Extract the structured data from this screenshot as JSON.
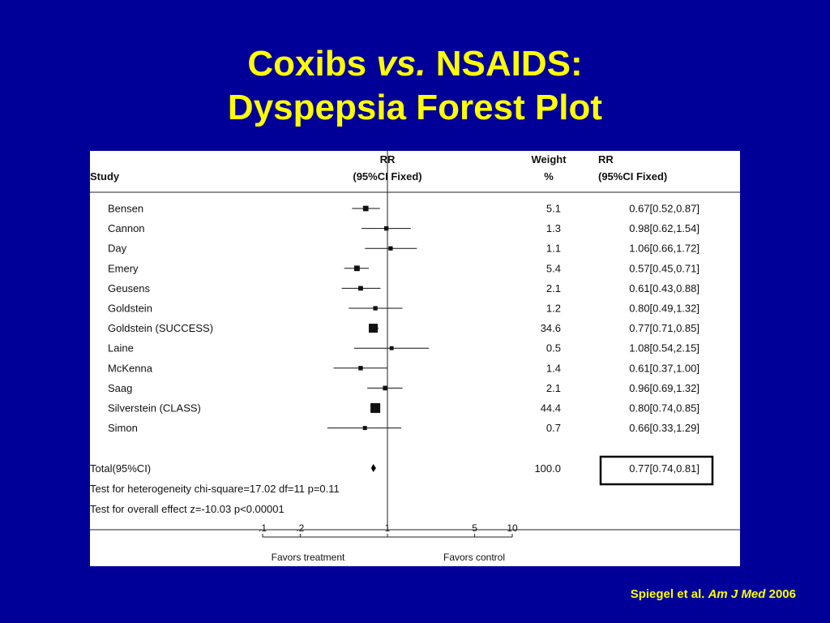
{
  "slide": {
    "title_line1_a": "Coxibs",
    "title_line1_b": "vs.",
    "title_line1_c": "NSAIDS:",
    "title_line2": "Dyspepsia Forest Plot",
    "citation_a": "Spiegel et al.",
    "citation_b": "Am J Med",
    "citation_c": "2006",
    "background_color": "#000099",
    "title_color": "#ffff00"
  },
  "chart_data": {
    "type": "forest",
    "header": {
      "study": "Study",
      "rr_line1": "RR",
      "rr_line2": "(95%CI Fixed)",
      "weight_line1": "Weight",
      "weight_line2": "%",
      "rr2_line1": "RR",
      "rr2_line2": "(95%CI Fixed)"
    },
    "scale": "log",
    "xlim": [
      0.1,
      10
    ],
    "ticks": [
      {
        "value": 0.1,
        "label": ".1"
      },
      {
        "value": 0.2,
        "label": ".2"
      },
      {
        "value": 1,
        "label": "1"
      },
      {
        "value": 5,
        "label": "5"
      },
      {
        "value": 10,
        "label": "10"
      }
    ],
    "favors_left": "Favors treatment",
    "favors_right": "Favors control",
    "studies": [
      {
        "name": "Bensen",
        "rr": 0.67,
        "lo": 0.52,
        "hi": 0.87,
        "weight": "5.1",
        "ci_text": "0.67[0.52,0.87]"
      },
      {
        "name": "Cannon",
        "rr": 0.98,
        "lo": 0.62,
        "hi": 1.54,
        "weight": "1.3",
        "ci_text": "0.98[0.62,1.54]"
      },
      {
        "name": "Day",
        "rr": 1.06,
        "lo": 0.66,
        "hi": 1.72,
        "weight": "1.1",
        "ci_text": "1.06[0.66,1.72]"
      },
      {
        "name": "Emery",
        "rr": 0.57,
        "lo": 0.45,
        "hi": 0.71,
        "weight": "5.4",
        "ci_text": "0.57[0.45,0.71]"
      },
      {
        "name": "Geusens",
        "rr": 0.61,
        "lo": 0.43,
        "hi": 0.88,
        "weight": "2.1",
        "ci_text": "0.61[0.43,0.88]"
      },
      {
        "name": "Goldstein",
        "rr": 0.8,
        "lo": 0.49,
        "hi": 1.32,
        "weight": "1.2",
        "ci_text": "0.80[0.49,1.32]"
      },
      {
        "name": "Goldstein (SUCCESS)",
        "rr": 0.77,
        "lo": 0.71,
        "hi": 0.85,
        "weight": "34.6",
        "ci_text": "0.77[0.71,0.85]"
      },
      {
        "name": "Laine",
        "rr": 1.08,
        "lo": 0.54,
        "hi": 2.15,
        "weight": "0.5",
        "ci_text": "1.08[0.54,2.15]"
      },
      {
        "name": "McKenna",
        "rr": 0.61,
        "lo": 0.37,
        "hi": 1.0,
        "weight": "1.4",
        "ci_text": "0.61[0.37,1.00]"
      },
      {
        "name": "Saag",
        "rr": 0.96,
        "lo": 0.69,
        "hi": 1.32,
        "weight": "2.1",
        "ci_text": "0.96[0.69,1.32]"
      },
      {
        "name": "Silverstein (CLASS)",
        "rr": 0.8,
        "lo": 0.74,
        "hi": 0.85,
        "weight": "44.4",
        "ci_text": "0.80[0.74,0.85]"
      },
      {
        "name": "Simon",
        "rr": 0.66,
        "lo": 0.33,
        "hi": 1.29,
        "weight": "0.7",
        "ci_text": "0.66[0.33,1.29]"
      }
    ],
    "total": {
      "name": "Total(95%CI)",
      "rr": 0.77,
      "lo": 0.74,
      "hi": 0.81,
      "weight": "100.0",
      "ci_text": "0.77[0.74,0.81]"
    },
    "heterogeneity_text": "Test for heterogeneity chi-square=17.02  df=11  p=0.11",
    "overall_effect_text": "Test for overall effect  z=-10.03  p<0.00001"
  }
}
